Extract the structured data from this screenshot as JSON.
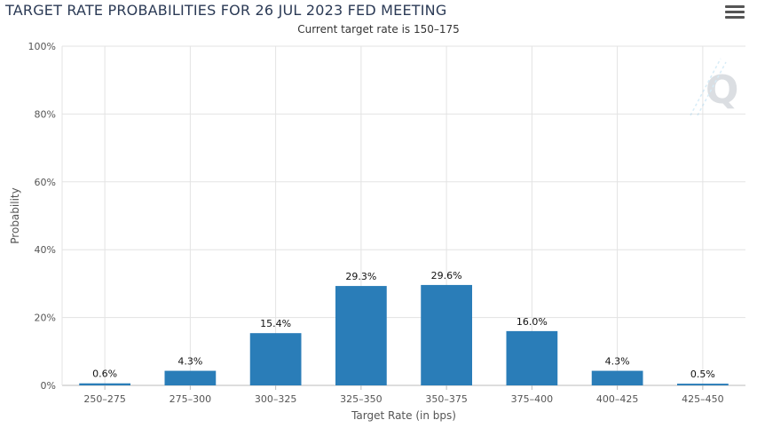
{
  "chart_data": {
    "type": "bar",
    "title": "TARGET RATE PROBABILITIES FOR 26 JUL 2023 FED MEETING",
    "subtitle": "Current target rate is 150–175",
    "xlabel": "Target Rate (in bps)",
    "ylabel": "Probability",
    "categories": [
      "250–275",
      "275–300",
      "300–325",
      "325–350",
      "350–375",
      "375–400",
      "400–425",
      "425–450"
    ],
    "values": [
      0.6,
      4.3,
      15.4,
      29.3,
      29.6,
      16.0,
      4.3,
      0.5
    ],
    "data_labels": [
      "0.6%",
      "4.3%",
      "15.4%",
      "29.3%",
      "29.6%",
      "16.0%",
      "4.3%",
      "0.5%"
    ],
    "y_ticks": [
      "0%",
      "20%",
      "40%",
      "60%",
      "80%",
      "100%"
    ],
    "ylim": [
      0,
      100
    ],
    "grid": true,
    "legend": "none",
    "bar_color": "#2a7db8"
  },
  "menu": {
    "icon": "hamburger-menu-icon"
  },
  "watermark": {
    "icon": "quikstrike-q-logo"
  }
}
